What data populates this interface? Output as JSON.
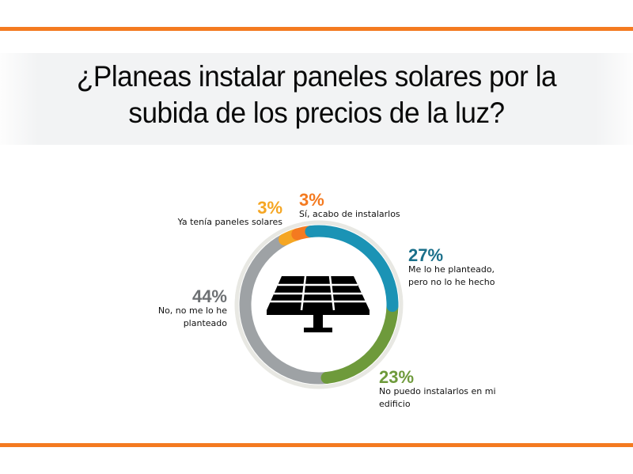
{
  "header": {
    "title_line1": "¿Planeas instalar paneles solares por la",
    "title_line2": "subida de los precios de la luz?"
  },
  "colors": {
    "rule": "#f47a20",
    "title_band": "#f2f3f4",
    "outer_ring": "#e8e8e3",
    "teal": "#1b93b5",
    "green": "#6e9a3b",
    "gray": "#9ea2a5",
    "yellow": "#f5a623",
    "orange": "#f47a20",
    "icon": "#000000"
  },
  "icon": "solar-panel-icon",
  "labels": {
    "yellow": {
      "pct": "3%",
      "text": "Ya tenía paneles solares"
    },
    "orange": {
      "pct": "3%",
      "text": "Sí, acabo de instalarlos"
    },
    "teal": {
      "pct": "27%",
      "text": "Me lo he planteado, pero no lo he hecho"
    },
    "gray": {
      "pct": "44%",
      "text": "No, no me lo he planteado"
    },
    "green": {
      "pct": "23%",
      "text": "No puedo instalarlos en mi edificio"
    }
  },
  "chart_data": {
    "type": "pie",
    "subtype": "donut",
    "title": "¿Planeas instalar paneles solares por la subida de los precios de la luz?",
    "categories": [
      "Sí, acabo de instalarlos",
      "Me lo he planteado, pero no lo he hecho",
      "No puedo instalarlos en mi edificio",
      "No, no me lo he planteado",
      "Ya tenía paneles solares"
    ],
    "values": [
      3,
      27,
      23,
      44,
      3
    ],
    "unit": "%",
    "colors": [
      "#f47a20",
      "#1b93b5",
      "#6e9a3b",
      "#9ea2a5",
      "#f5a623"
    ],
    "legend_position": "data labels around ring"
  }
}
